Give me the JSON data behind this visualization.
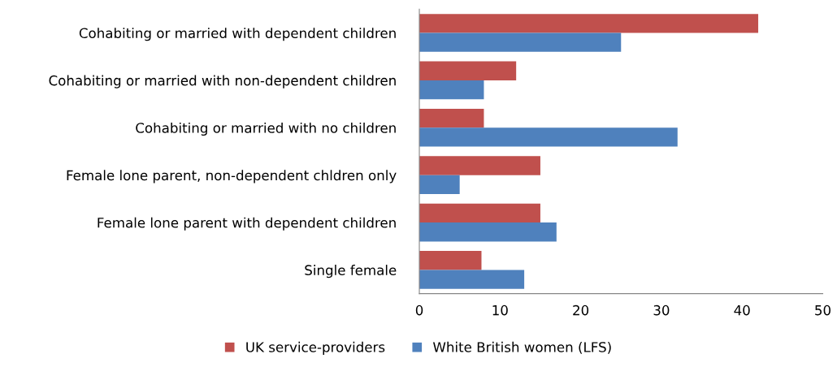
{
  "chart_data": {
    "type": "bar",
    "orientation": "horizontal",
    "categories": [
      "Cohabiting or married with dependent children",
      "Cohabiting or married with non-dependent children",
      "Cohabiting or married with no children",
      "Female lone parent, non-dependent chldren only",
      "Female lone parent with dependent children",
      "Single female"
    ],
    "series": [
      {
        "name": "UK service-providers",
        "color": "#c0504d",
        "values": [
          42,
          12,
          8,
          15,
          15,
          7.7
        ]
      },
      {
        "name": "White British women (LFS)",
        "color": "#4f81bd",
        "values": [
          25,
          8,
          32,
          5,
          17,
          13
        ]
      }
    ],
    "xlim": [
      0,
      50
    ],
    "xticks": [
      0,
      10,
      20,
      30,
      40,
      50
    ],
    "grid": false,
    "legend": "bottom"
  }
}
